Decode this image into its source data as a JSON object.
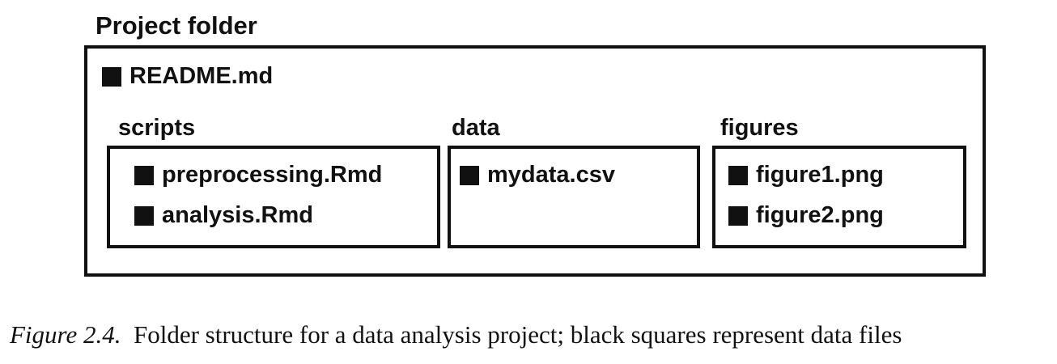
{
  "diagram": {
    "project_label": "Project folder",
    "readme": "README.md",
    "folders": [
      {
        "name": "scripts",
        "files": [
          "preprocessing.Rmd",
          "analysis.Rmd"
        ]
      },
      {
        "name": "data",
        "files": [
          "mydata.csv"
        ]
      },
      {
        "name": "figures",
        "files": [
          "figure1.png",
          "figure2.png"
        ]
      }
    ]
  },
  "caption": {
    "figure_number": "Figure 2.4.",
    "text": "Folder structure for a data analysis project; black squares represent data files"
  }
}
